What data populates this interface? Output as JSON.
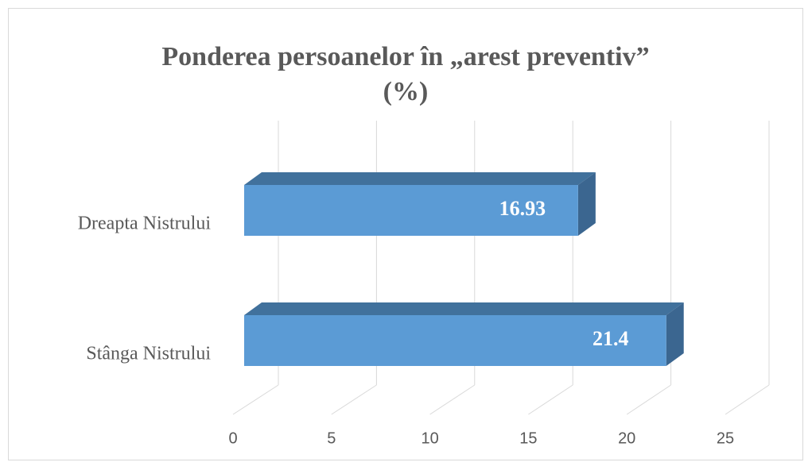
{
  "chart_data": {
    "type": "bar3d_horizontal",
    "title": "Ponderea persoanelor  în „arest preventiv”\n(%)",
    "categories": [
      "Dreapta Nistrului",
      "Stânga Nistrului"
    ],
    "values": [
      16.93,
      21.4
    ],
    "color": "#5b9bd5",
    "xlim": [
      0,
      25
    ],
    "xticks": [
      0,
      5,
      10,
      15,
      20,
      25
    ],
    "grid": true
  }
}
